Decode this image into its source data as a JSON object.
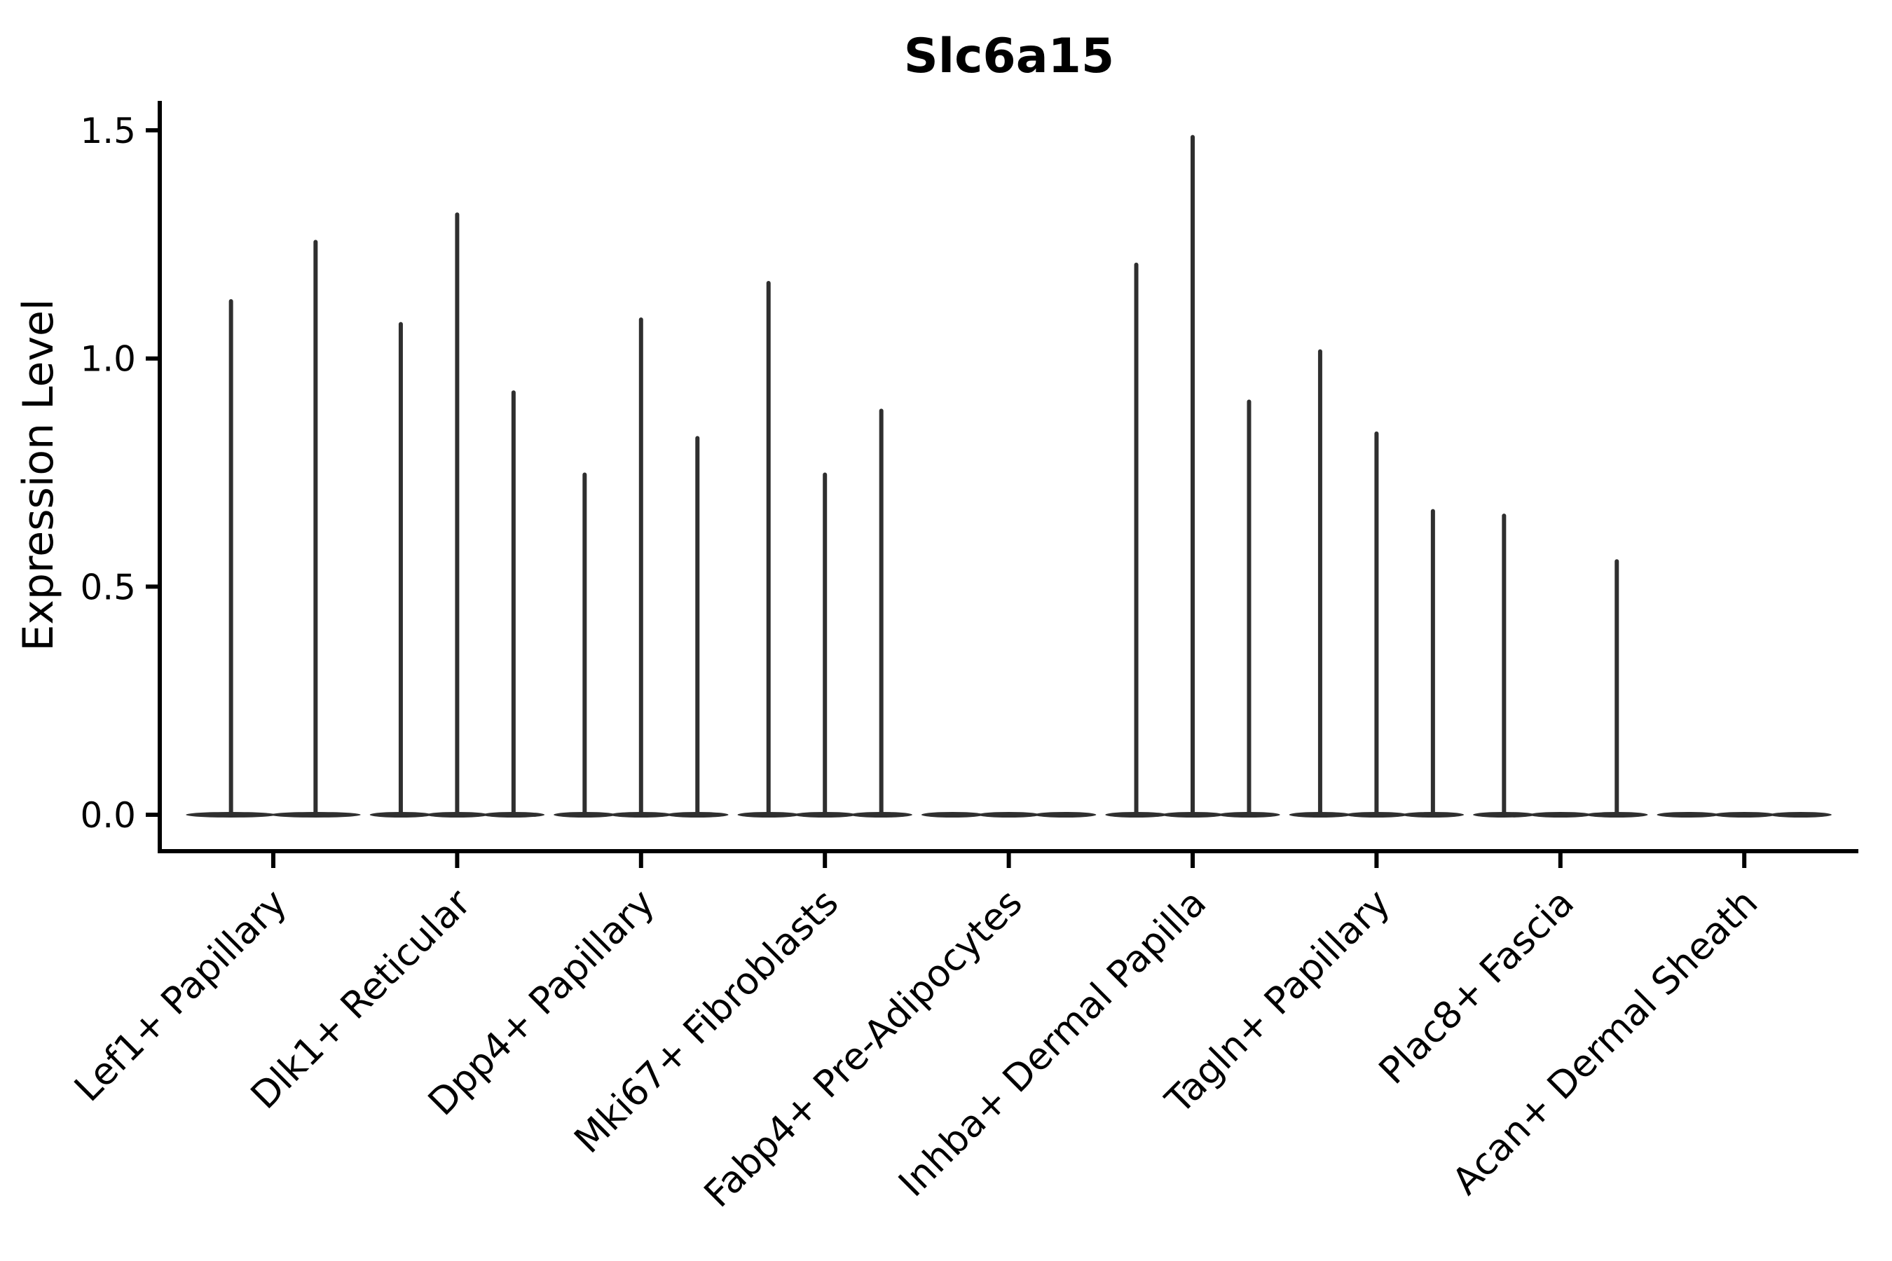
{
  "figure": {
    "title": "Slc6a15",
    "background_color": "#ffffff"
  },
  "chart_data": {
    "type": "violin",
    "title": "Slc6a15",
    "xlabel": "",
    "ylabel": "Expression Level",
    "ylim": [
      -0.08,
      1.57
    ],
    "yticks": [
      0,
      0.5,
      1,
      1.5
    ],
    "ytick_labels": [
      "0.0",
      "0.5",
      "1.0",
      "1.5"
    ],
    "grid": false,
    "legend": false,
    "line_color": "#2f2f2f",
    "axis_color": "#000000",
    "x_tick_label_rotation_deg": 45,
    "description": "Single-cell expression violin plot for gene Slc6a15 across dermal fibroblast cell types. Each category holds 2-3 extremely thin violins: a dense flat mass at expression 0 (lens-shaped base) with a hairline tail rising to the max expression value. All-zero categories show only the flat base.",
    "categories": [
      "Lef1+ Papillary",
      "Dlk1+ Reticular",
      "Dpp4+ Papillary",
      "Mki67+ Fibroblasts",
      "Fabp4+ Pre-Adipocytes",
      "Inhba+ Dermal Papilla",
      "Tagln+ Papillary",
      "Plac8+ Fascia",
      "Acan+ Dermal Sheath"
    ],
    "groups": [
      {
        "label": "Lef1+ Papillary",
        "violins": [
          {
            "max_expression": 1.13
          },
          {
            "max_expression": 1.26
          }
        ]
      },
      {
        "label": "Dlk1+ Reticular",
        "violins": [
          {
            "max_expression": 1.08
          },
          {
            "max_expression": 1.32
          },
          {
            "max_expression": 0.93
          }
        ]
      },
      {
        "label": "Dpp4+ Papillary",
        "violins": [
          {
            "max_expression": 0.75
          },
          {
            "max_expression": 1.09
          },
          {
            "max_expression": 0.83
          }
        ]
      },
      {
        "label": "Mki67+ Fibroblasts",
        "violins": [
          {
            "max_expression": 1.17
          },
          {
            "max_expression": 0.75
          },
          {
            "max_expression": 0.89
          }
        ]
      },
      {
        "label": "Fabp4+ Pre-Adipocytes",
        "violins": [
          {
            "max_expression": 0
          },
          {
            "max_expression": 0
          },
          {
            "max_expression": 0
          }
        ]
      },
      {
        "label": "Inhba+ Dermal Papilla",
        "violins": [
          {
            "max_expression": 1.21
          },
          {
            "max_expression": 1.49
          },
          {
            "max_expression": 0.91
          }
        ]
      },
      {
        "label": "Tagln+ Papillary",
        "violins": [
          {
            "max_expression": 1.02
          },
          {
            "max_expression": 0.84
          },
          {
            "max_expression": 0.67
          }
        ]
      },
      {
        "label": "Plac8+ Fascia",
        "violins": [
          {
            "max_expression": 0.66
          },
          {
            "max_expression": 0
          },
          {
            "max_expression": 0.56
          }
        ]
      },
      {
        "label": "Acan+ Dermal Sheath",
        "violins": [
          {
            "max_expression": 0
          },
          {
            "max_expression": 0
          },
          {
            "max_expression": 0
          }
        ]
      }
    ]
  }
}
